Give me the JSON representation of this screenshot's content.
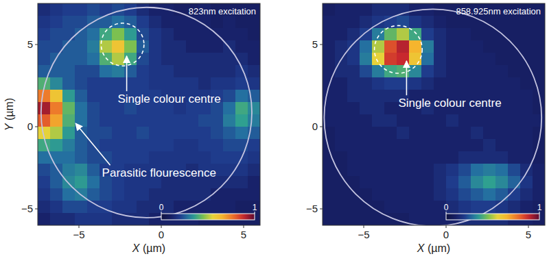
{
  "chart_data": [
    {
      "type": "heatmap",
      "title": "823nm excitation",
      "xlabel": "X (µm)",
      "ylabel": "Y (µm)",
      "x": [
        -7.125,
        -6.375,
        -5.625,
        -4.875,
        -4.125,
        -3.375,
        -2.625,
        -1.875,
        -1.125,
        -0.375,
        0.375,
        1.125,
        1.875,
        2.625,
        3.375,
        4.125,
        4.875,
        5.625
      ],
      "y": [
        7.125,
        6.375,
        5.625,
        4.875,
        4.125,
        3.375,
        2.625,
        1.875,
        1.125,
        0.375,
        -0.375,
        -1.125,
        -1.875,
        -2.625,
        -3.375,
        -4.125,
        -4.875,
        -5.625
      ],
      "xlim": [
        -7.5,
        6
      ],
      "ylim": [
        -6,
        7.5
      ],
      "xticks": [
        {
          "value": -5,
          "label": "−5"
        },
        0,
        5
      ],
      "yticks": [
        {
          "value": -5,
          "label": "−5"
        },
        0,
        5
      ],
      "cells": [
        [
          0.15,
          0.18,
          0.2,
          0.2,
          0.22,
          0.2,
          0.22,
          0.2,
          0.15,
          0.12,
          0.12,
          0.1,
          0.1,
          0.12,
          0.1,
          0.1,
          0.1,
          0.1
        ],
        [
          0.18,
          0.2,
          0.22,
          0.22,
          0.25,
          0.25,
          0.28,
          0.25,
          0.2,
          0.15,
          0.12,
          0.12,
          0.12,
          0.12,
          0.1,
          0.12,
          0.1,
          0.1
        ],
        [
          0.2,
          0.22,
          0.22,
          0.25,
          0.28,
          0.38,
          0.45,
          0.35,
          0.22,
          0.18,
          0.15,
          0.12,
          0.12,
          0.12,
          0.12,
          0.12,
          0.12,
          0.1
        ],
        [
          0.22,
          0.22,
          0.25,
          0.25,
          0.3,
          0.5,
          0.6,
          0.45,
          0.25,
          0.18,
          0.15,
          0.15,
          0.12,
          0.12,
          0.12,
          0.15,
          0.12,
          0.12
        ],
        [
          0.22,
          0.25,
          0.25,
          0.25,
          0.28,
          0.4,
          0.5,
          0.38,
          0.22,
          0.18,
          0.15,
          0.15,
          0.15,
          0.15,
          0.15,
          0.15,
          0.15,
          0.12
        ],
        [
          0.25,
          0.25,
          0.25,
          0.22,
          0.22,
          0.28,
          0.3,
          0.25,
          0.2,
          0.18,
          0.18,
          0.15,
          0.15,
          0.15,
          0.15,
          0.15,
          0.18,
          0.15
        ],
        [
          0.4,
          0.32,
          0.25,
          0.22,
          0.2,
          0.2,
          0.2,
          0.2,
          0.2,
          0.18,
          0.18,
          0.18,
          0.18,
          0.15,
          0.18,
          0.18,
          0.2,
          0.18
        ],
        [
          0.75,
          0.6,
          0.35,
          0.25,
          0.2,
          0.2,
          0.2,
          0.2,
          0.2,
          0.2,
          0.18,
          0.18,
          0.18,
          0.18,
          0.2,
          0.22,
          0.28,
          0.25
        ],
        [
          0.92,
          0.75,
          0.42,
          0.28,
          0.22,
          0.2,
          0.2,
          0.22,
          0.2,
          0.2,
          0.2,
          0.18,
          0.2,
          0.2,
          0.22,
          0.28,
          0.38,
          0.32
        ],
        [
          0.8,
          0.68,
          0.4,
          0.28,
          0.22,
          0.2,
          0.2,
          0.2,
          0.2,
          0.2,
          0.2,
          0.2,
          0.2,
          0.22,
          0.22,
          0.3,
          0.36,
          0.3
        ],
        [
          0.55,
          0.5,
          0.35,
          0.25,
          0.22,
          0.22,
          0.2,
          0.2,
          0.22,
          0.2,
          0.2,
          0.2,
          0.2,
          0.2,
          0.22,
          0.25,
          0.28,
          0.25
        ],
        [
          0.38,
          0.35,
          0.3,
          0.25,
          0.22,
          0.2,
          0.2,
          0.2,
          0.2,
          0.2,
          0.2,
          0.18,
          0.18,
          0.2,
          0.2,
          0.22,
          0.22,
          0.2
        ],
        [
          0.28,
          0.28,
          0.28,
          0.25,
          0.22,
          0.22,
          0.2,
          0.2,
          0.2,
          0.18,
          0.18,
          0.18,
          0.18,
          0.18,
          0.2,
          0.2,
          0.2,
          0.18
        ],
        [
          0.22,
          0.25,
          0.3,
          0.32,
          0.25,
          0.2,
          0.2,
          0.18,
          0.18,
          0.18,
          0.18,
          0.18,
          0.15,
          0.18,
          0.18,
          0.18,
          0.18,
          0.15
        ],
        [
          0.2,
          0.25,
          0.32,
          0.35,
          0.28,
          0.22,
          0.2,
          0.18,
          0.18,
          0.18,
          0.15,
          0.15,
          0.15,
          0.15,
          0.15,
          0.15,
          0.15,
          0.12
        ],
        [
          0.18,
          0.22,
          0.28,
          0.3,
          0.25,
          0.22,
          0.2,
          0.18,
          0.18,
          0.15,
          0.15,
          0.15,
          0.15,
          0.15,
          0.12,
          0.12,
          0.12,
          0.12
        ],
        [
          0.15,
          0.18,
          0.22,
          0.22,
          0.2,
          0.2,
          0.18,
          0.18,
          0.15,
          0.15,
          0.15,
          0.12,
          0.12,
          0.12,
          0.12,
          0.12,
          0.1,
          0.1
        ],
        [
          0.12,
          0.15,
          0.15,
          0.18,
          0.18,
          0.18,
          0.15,
          0.15,
          0.15,
          0.12,
          0.12,
          0.12,
          0.12,
          0.1,
          0.1,
          0.1,
          0.1,
          0.1
        ]
      ],
      "colorbar": {
        "range": [
          0,
          1
        ],
        "ticks": [
          0,
          1
        ]
      },
      "circles": [
        {
          "cx": -0.9,
          "cy": 0.86,
          "r": 6.4,
          "line_style": "solid",
          "color": "#c4c4e0"
        },
        {
          "cx": -2.35,
          "cy": 5.0,
          "r": 1.3,
          "line_style": "dashed",
          "color": "#ffffff"
        }
      ],
      "annotations": [
        {
          "text": "Single colour centre",
          "xy": [
            -2.1,
            4.3
          ],
          "xytext": [
            -2.65,
            1.45
          ]
        },
        {
          "text": "Parasitic flourescence",
          "xy": [
            -5.2,
            0.2
          ],
          "xytext": [
            -3.6,
            -3.05
          ]
        }
      ]
    },
    {
      "type": "heatmap",
      "title": "858.925nm excitation",
      "xlabel": "X (µm)",
      "x": [
        -7.125,
        -6.375,
        -5.625,
        -4.875,
        -4.125,
        -3.375,
        -2.625,
        -1.875,
        -1.125,
        -0.375,
        0.375,
        1.125,
        1.875,
        2.625,
        3.375,
        4.125,
        4.875,
        5.625
      ],
      "y": [
        7.125,
        6.375,
        5.625,
        4.875,
        4.125,
        3.375,
        2.625,
        1.875,
        1.125,
        0.375,
        -0.375,
        -1.125,
        -1.875,
        -2.625,
        -3.375,
        -4.125,
        -4.875,
        -5.625
      ],
      "xlim": [
        -7.5,
        6
      ],
      "ylim": [
        -6,
        7.5
      ],
      "xticks": [
        {
          "value": -5,
          "label": "−5"
        },
        0,
        5
      ],
      "yticks": [
        {
          "value": -5,
          "label": "−5"
        },
        0,
        5
      ],
      "cells": [
        [
          0.1,
          0.12,
          0.12,
          0.12,
          0.15,
          0.15,
          0.15,
          0.12,
          0.12,
          0.1,
          0.1,
          0.1,
          0.1,
          0.1,
          0.1,
          0.1,
          0.1,
          0.1
        ],
        [
          0.12,
          0.12,
          0.12,
          0.15,
          0.18,
          0.2,
          0.22,
          0.18,
          0.15,
          0.12,
          0.1,
          0.1,
          0.1,
          0.1,
          0.1,
          0.1,
          0.1,
          0.1
        ],
        [
          0.12,
          0.12,
          0.15,
          0.2,
          0.3,
          0.42,
          0.5,
          0.38,
          0.2,
          0.15,
          0.12,
          0.12,
          0.1,
          0.1,
          0.1,
          0.1,
          0.1,
          0.1
        ],
        [
          0.12,
          0.15,
          0.18,
          0.28,
          0.5,
          0.82,
          0.9,
          0.65,
          0.3,
          0.15,
          0.12,
          0.12,
          0.12,
          0.1,
          0.1,
          0.1,
          0.1,
          0.1
        ],
        [
          0.12,
          0.15,
          0.18,
          0.3,
          0.55,
          0.85,
          0.88,
          0.6,
          0.28,
          0.15,
          0.12,
          0.12,
          0.12,
          0.12,
          0.1,
          0.1,
          0.1,
          0.1
        ],
        [
          0.12,
          0.15,
          0.15,
          0.22,
          0.3,
          0.38,
          0.4,
          0.32,
          0.2,
          0.15,
          0.12,
          0.12,
          0.12,
          0.12,
          0.12,
          0.1,
          0.1,
          0.1
        ],
        [
          0.12,
          0.12,
          0.15,
          0.15,
          0.18,
          0.2,
          0.2,
          0.18,
          0.15,
          0.12,
          0.12,
          0.12,
          0.12,
          0.12,
          0.12,
          0.12,
          0.1,
          0.1
        ],
        [
          0.12,
          0.12,
          0.15,
          0.15,
          0.15,
          0.15,
          0.15,
          0.12,
          0.12,
          0.12,
          0.12,
          0.12,
          0.12,
          0.12,
          0.12,
          0.12,
          0.12,
          0.1
        ],
        [
          0.12,
          0.12,
          0.12,
          0.15,
          0.15,
          0.12,
          0.12,
          0.12,
          0.15,
          0.12,
          0.12,
          0.12,
          0.12,
          0.12,
          0.12,
          0.12,
          0.12,
          0.1
        ],
        [
          0.12,
          0.12,
          0.12,
          0.12,
          0.15,
          0.15,
          0.12,
          0.12,
          0.12,
          0.12,
          0.15,
          0.12,
          0.12,
          0.12,
          0.12,
          0.12,
          0.12,
          0.12
        ],
        [
          0.1,
          0.12,
          0.12,
          0.12,
          0.12,
          0.12,
          0.15,
          0.12,
          0.12,
          0.12,
          0.12,
          0.12,
          0.15,
          0.12,
          0.12,
          0.12,
          0.12,
          0.1
        ],
        [
          0.1,
          0.12,
          0.12,
          0.12,
          0.12,
          0.12,
          0.12,
          0.12,
          0.12,
          0.12,
          0.12,
          0.12,
          0.12,
          0.15,
          0.12,
          0.12,
          0.12,
          0.1
        ],
        [
          0.1,
          0.1,
          0.12,
          0.12,
          0.12,
          0.12,
          0.12,
          0.12,
          0.12,
          0.12,
          0.12,
          0.15,
          0.15,
          0.15,
          0.15,
          0.12,
          0.12,
          0.1
        ],
        [
          0.1,
          0.1,
          0.12,
          0.12,
          0.12,
          0.12,
          0.12,
          0.12,
          0.12,
          0.15,
          0.18,
          0.22,
          0.28,
          0.3,
          0.28,
          0.22,
          0.15,
          0.12
        ],
        [
          0.1,
          0.1,
          0.1,
          0.12,
          0.12,
          0.12,
          0.12,
          0.12,
          0.12,
          0.15,
          0.2,
          0.25,
          0.32,
          0.36,
          0.32,
          0.26,
          0.18,
          0.12
        ],
        [
          0.1,
          0.1,
          0.1,
          0.1,
          0.12,
          0.12,
          0.12,
          0.12,
          0.12,
          0.15,
          0.18,
          0.22,
          0.25,
          0.28,
          0.25,
          0.2,
          0.15,
          0.12
        ],
        [
          0.1,
          0.1,
          0.1,
          0.1,
          0.1,
          0.12,
          0.12,
          0.12,
          0.12,
          0.12,
          0.15,
          0.18,
          0.2,
          0.2,
          0.18,
          0.15,
          0.12,
          0.1
        ],
        [
          0.1,
          0.1,
          0.1,
          0.1,
          0.1,
          0.1,
          0.1,
          0.12,
          0.12,
          0.12,
          0.12,
          0.15,
          0.15,
          0.15,
          0.15,
          0.12,
          0.12,
          0.1
        ]
      ],
      "colorbar": {
        "range": [
          0,
          1
        ],
        "ticks": [
          0,
          1
        ]
      },
      "circles": [
        {
          "cx": -0.8,
          "cy": 0.55,
          "r": 6.6,
          "line_style": "solid",
          "color": "#c4c4e0"
        },
        {
          "cx": -2.9,
          "cy": 4.7,
          "r": 1.45,
          "line_style": "dashed",
          "color": "#ffffff"
        }
      ],
      "annotations": [
        {
          "text": "Single colour centre",
          "xy": [
            -2.4,
            4.0
          ],
          "xytext": [
            -2.9,
            1.2
          ]
        }
      ]
    }
  ]
}
